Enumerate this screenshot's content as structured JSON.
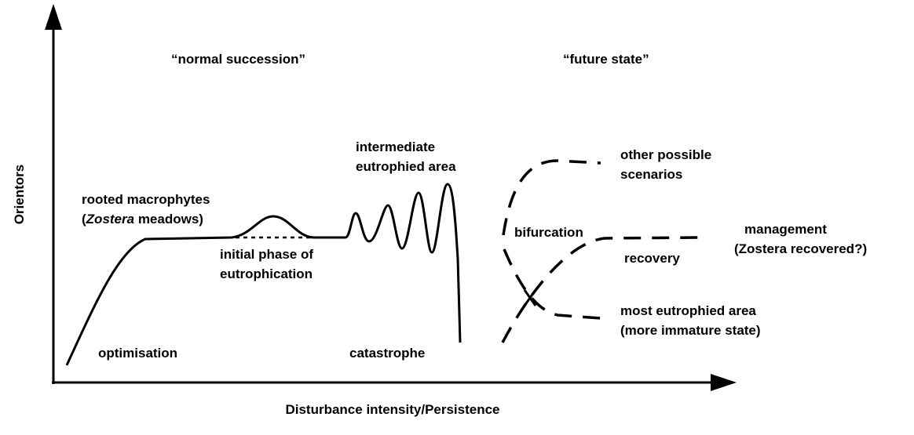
{
  "axes": {
    "y_label": "Orientors",
    "x_label": "Disturbance intensity/Persistence"
  },
  "phases": {
    "left": "“normal succession”",
    "right": "“future state”"
  },
  "labels": {
    "rooted": {
      "line1": "rooted macrophytes",
      "line2": [
        "(",
        "Zostera",
        " meadows)"
      ]
    },
    "initial": [
      "initial phase of",
      "eutrophication"
    ],
    "intermediate": [
      "intermediate",
      "eutrophied area"
    ],
    "optimisation": "optimisation",
    "catastrophe": "catastrophe",
    "bifurcation": "bifurcation",
    "other": [
      "other possible",
      "scenarios"
    ],
    "management": [
      "management",
      "(Zostera recovered?)"
    ],
    "recovery": "recovery",
    "most": [
      "most eutrophied area",
      "(more immature state)"
    ]
  }
}
